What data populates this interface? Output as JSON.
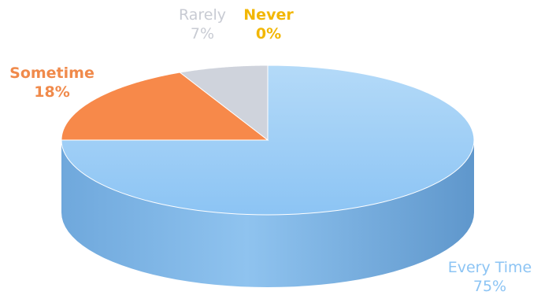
{
  "chart_data": {
    "type": "pie",
    "style": "3d",
    "title": "",
    "slices": [
      {
        "label": "Every Time",
        "value": 75,
        "value_label": "75%",
        "color": "#8cc4f4",
        "label_color": "#8cc4f4"
      },
      {
        "label": "Sometime",
        "value": 18,
        "value_label": "18%",
        "color": "#f7894a",
        "label_color": "#f08a4b"
      },
      {
        "label": "Rarely",
        "value": 7,
        "value_label": "7%",
        "color": "#cfd3dc",
        "label_color": "#c8cbd3"
      },
      {
        "label": "Never",
        "value": 0,
        "value_label": "0%",
        "color": "#f5b800",
        "label_color": "#f2b705"
      }
    ],
    "legend": "none",
    "grid": false
  }
}
